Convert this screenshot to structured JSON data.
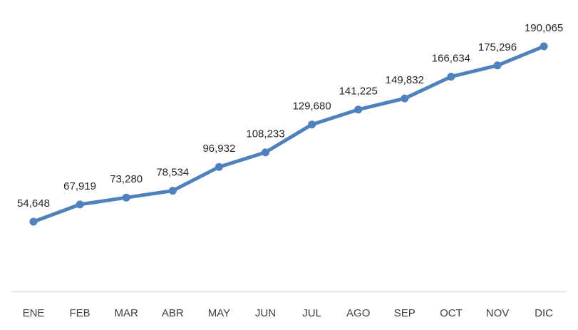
{
  "chart_data": {
    "type": "line",
    "title": "",
    "xlabel": "",
    "ylabel": "",
    "categories": [
      "ENE",
      "FEB",
      "MAR",
      "ABR",
      "MAY",
      "JUN",
      "JUL",
      "AGO",
      "SEP",
      "OCT",
      "NOV",
      "DIC"
    ],
    "series": [
      {
        "values": [
          54648,
          67919,
          73280,
          78534,
          96932,
          108233,
          129680,
          141225,
          149832,
          166634,
          175296,
          190065
        ],
        "labels": [
          "54,648",
          "67,919",
          "73,280",
          "78,534",
          "96,932",
          "108,233",
          "129,680",
          "141,225",
          "149,832",
          "166,634",
          "175,296",
          "190,065"
        ],
        "color": "#4f81bd"
      }
    ],
    "ylim": [
      0,
      200000
    ],
    "grid": false,
    "legend": "none",
    "axis_color": "#d9d9d9"
  }
}
